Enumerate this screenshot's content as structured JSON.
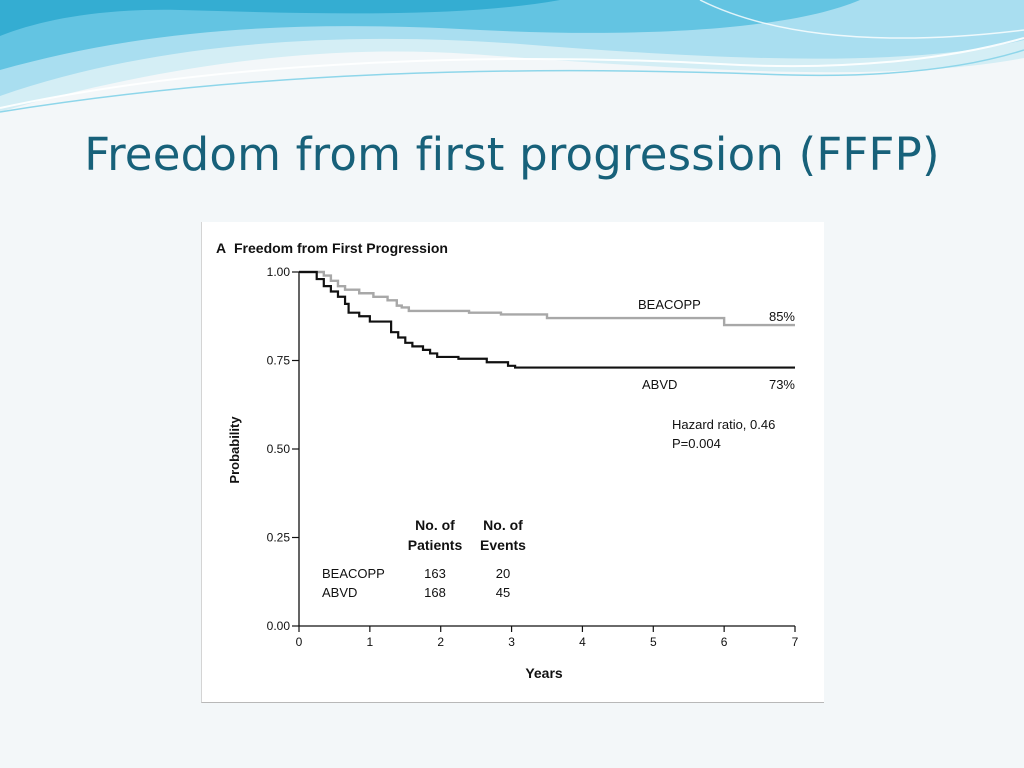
{
  "slide": {
    "title": "Freedom from first progression (FFFP)"
  },
  "colors": {
    "title": "#17617a",
    "background": "#f3f7f9",
    "wave_light": "#bfe6f0",
    "wave_mid": "#7fd0e6",
    "wave_dark": "#3bb4d4"
  },
  "chart_data": {
    "type": "line",
    "panel_label": "A",
    "title": "Freedom from First Progression",
    "xlabel": "Years",
    "ylabel": "Probability",
    "xlim": [
      0,
      7
    ],
    "ylim": [
      0,
      1
    ],
    "x_ticks": [
      "0",
      "1",
      "2",
      "3",
      "4",
      "5",
      "6",
      "7"
    ],
    "y_ticks": [
      "0.00",
      "0.25",
      "0.50",
      "0.75",
      "1.00"
    ],
    "grid": false,
    "series": [
      {
        "name": "BEACOPP",
        "end_label": "85%",
        "color": "#a8a8a8",
        "x": [
          0,
          0.35,
          0.45,
          0.55,
          0.65,
          0.85,
          1.05,
          1.25,
          1.38,
          1.45,
          1.55,
          2.4,
          2.85,
          3.5,
          5.8,
          6.0,
          7.0
        ],
        "y": [
          1.0,
          0.99,
          0.975,
          0.96,
          0.95,
          0.94,
          0.93,
          0.92,
          0.905,
          0.9,
          0.89,
          0.885,
          0.88,
          0.87,
          0.87,
          0.85,
          0.85
        ]
      },
      {
        "name": "ABVD",
        "end_label": "73%",
        "color": "#111111",
        "x": [
          0,
          0.25,
          0.35,
          0.45,
          0.55,
          0.65,
          0.7,
          0.85,
          1.0,
          1.2,
          1.3,
          1.4,
          1.5,
          1.6,
          1.75,
          1.85,
          1.95,
          2.25,
          2.65,
          2.95,
          3.05,
          7.0
        ],
        "y": [
          1.0,
          0.98,
          0.96,
          0.945,
          0.93,
          0.91,
          0.885,
          0.875,
          0.86,
          0.86,
          0.83,
          0.815,
          0.8,
          0.79,
          0.78,
          0.77,
          0.76,
          0.755,
          0.745,
          0.735,
          0.73,
          0.73
        ]
      }
    ],
    "annotations": {
      "hazard_ratio": "Hazard ratio, 0.46",
      "p_value": "P=0.004"
    },
    "table": {
      "headers": [
        [
          "No. of",
          "Patients"
        ],
        [
          "No. of",
          "Events"
        ]
      ],
      "rows": [
        {
          "group": "BEACOPP",
          "patients": "163",
          "events": "20"
        },
        {
          "group": "ABVD",
          "patients": "168",
          "events": "45"
        }
      ]
    }
  }
}
